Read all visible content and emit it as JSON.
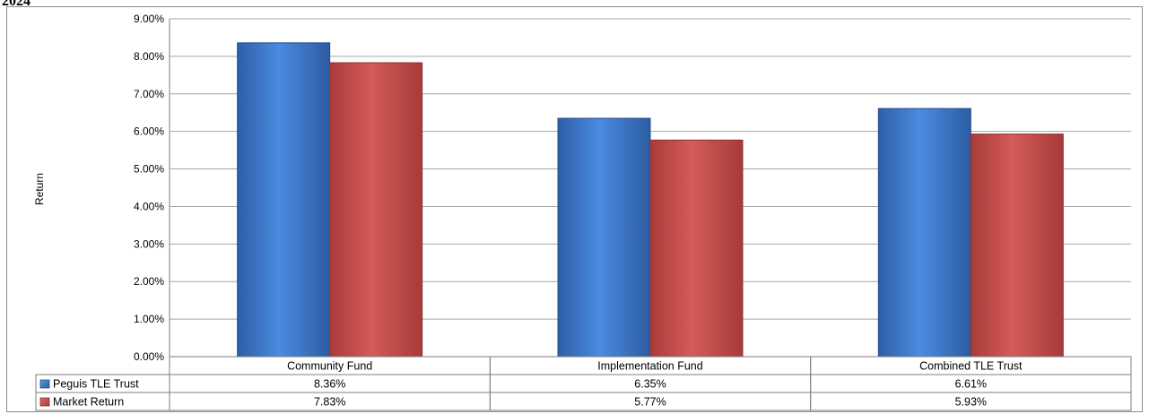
{
  "header": {
    "year_fragment": "2024"
  },
  "chart_data": {
    "type": "bar",
    "title": "",
    "xlabel": "",
    "ylabel": "Return",
    "ylim": [
      0,
      9
    ],
    "yticks": [
      "0.00%",
      "1.00%",
      "2.00%",
      "3.00%",
      "4.00%",
      "5.00%",
      "6.00%",
      "7.00%",
      "8.00%",
      "9.00%"
    ],
    "categories": [
      "Community Fund",
      "Implementation Fund",
      "Combined TLE Trust"
    ],
    "series": [
      {
        "name": "Peguis TLE Trust",
        "values": [
          8.36,
          6.35,
          6.61
        ],
        "labels": [
          "8.36%",
          "6.35%",
          "6.61%"
        ],
        "color": "#3a78c8"
      },
      {
        "name": "Market Return",
        "values": [
          7.83,
          5.77,
          5.93
        ],
        "labels": [
          "7.83%",
          "5.77%",
          "5.93%"
        ],
        "color": "#c9504e"
      }
    ],
    "grid": true,
    "legend": "data-table-left"
  }
}
